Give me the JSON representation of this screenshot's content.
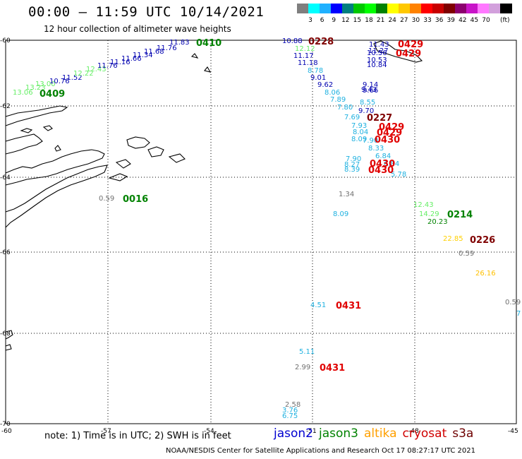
{
  "title": "00:00 – 11:59 UTC 10/14/2021",
  "subtitle": "12 hour collection of altimeter wave heights",
  "colorbar": {
    "colors": [
      "#7f7f7f",
      "#00ffff",
      "#1fb1ff",
      "#0000ff",
      "#007f7f",
      "#00c800",
      "#00ff00",
      "#008200",
      "#ffff00",
      "#ffc800",
      "#ff8200",
      "#ff0000",
      "#c80000",
      "#7f0000",
      "#8c006e",
      "#c814c8",
      "#ff78ff",
      "#d2a0dc",
      "#000000"
    ],
    "labels": [
      "3",
      "6",
      "9",
      "12",
      "15",
      "18",
      "21",
      "24",
      "27",
      "30",
      "33",
      "36",
      "39",
      "42",
      "45",
      "70"
    ],
    "unit": "(ft)"
  },
  "axes": {
    "lat_labels": [
      "-60",
      "-62",
      "-64",
      "-66",
      "-68",
      "-70"
    ],
    "lon_labels": [
      "-60",
      "-57",
      "-54",
      "-51",
      "-48",
      "-45"
    ]
  },
  "legend": [
    {
      "name": "jason2",
      "color": "#0000d0"
    },
    {
      "name": "jason3",
      "color": "#008200"
    },
    {
      "name": "altika",
      "color": "#ffa000"
    },
    {
      "name": "cryosat",
      "color": "#d00000"
    },
    {
      "name": "s3a",
      "color": "#6e0000"
    }
  ],
  "note": "note: 1) Time is in UTC; 2) SWH is in feet",
  "credit": "NOAA/NESDIS Center for Satellite Applications and Research   Oct 17 08:27:17 UTC 2021",
  "observations": [
    {
      "text": "13.06",
      "color": "#66ee66"
    },
    {
      "text": "13.23",
      "color": "#66ee66"
    },
    {
      "text": "13.00",
      "color": "#66ee66"
    },
    {
      "text": "10.76",
      "color": "#0000b0"
    },
    {
      "text": "11.52",
      "color": "#0000b0"
    },
    {
      "text": "12.22",
      "color": "#66ee66"
    },
    {
      "text": "12.43",
      "color": "#66ee66"
    },
    {
      "text": "11.76",
      "color": "#0000b0"
    },
    {
      "text": "11.16",
      "color": "#0000b0"
    },
    {
      "text": "11.66",
      "color": "#0000b0"
    },
    {
      "text": "11.34",
      "color": "#0000b0"
    },
    {
      "text": "11.68",
      "color": "#0000b0"
    },
    {
      "text": "11.76",
      "color": "#0000b0"
    },
    {
      "text": "11.83",
      "color": "#0000b0"
    },
    {
      "text": "10.88",
      "color": "#0000b0"
    },
    {
      "text": "12.12",
      "color": "#66ee66"
    },
    {
      "text": "11.17",
      "color": "#0000b0"
    },
    {
      "text": "11.18",
      "color": "#0000b0"
    },
    {
      "text": "8.78",
      "color": "#1fb1e0"
    },
    {
      "text": "9.01",
      "color": "#0000b0"
    },
    {
      "text": "9.62",
      "color": "#0000b0"
    },
    {
      "text": "8.06",
      "color": "#1fb1e0"
    },
    {
      "text": "7.89",
      "color": "#1fb1e0"
    },
    {
      "text": "7.80",
      "color": "#1fb1e0"
    },
    {
      "text": "7.69",
      "color": "#1fb1e0"
    },
    {
      "text": "7.93",
      "color": "#1fb1e0"
    },
    {
      "text": "8.04",
      "color": "#1fb1e0"
    },
    {
      "text": "8.09",
      "color": "#1fb1e0"
    },
    {
      "text": "7.90",
      "color": "#1fb1e0"
    },
    {
      "text": "8.33",
      "color": "#1fb1e0"
    },
    {
      "text": "6.84",
      "color": "#1fb1e0"
    },
    {
      "text": "7.90",
      "color": "#1fb1e0"
    },
    {
      "text": "8.27",
      "color": "#1fb1e0"
    },
    {
      "text": "8.39",
      "color": "#1fb1e0"
    },
    {
      "text": "6.84",
      "color": "#1fb1e0"
    },
    {
      "text": "5.78",
      "color": "#1fb1e0"
    },
    {
      "text": "8.55",
      "color": "#1fb1e0"
    },
    {
      "text": "9.70",
      "color": "#0000b0"
    },
    {
      "text": "9.14",
      "color": "#0000b0"
    },
    {
      "text": "9.43",
      "color": "#0000b0"
    },
    {
      "text": "9.66",
      "color": "#0000b0"
    },
    {
      "text": "11.43",
      "color": "#0000b0"
    },
    {
      "text": "11.27",
      "color": "#0000b0"
    },
    {
      "text": "10.56",
      "color": "#0000b0"
    },
    {
      "text": "10.53",
      "color": "#0000b0"
    },
    {
      "text": "10.84",
      "color": "#0000b0"
    },
    {
      "text": "1.34",
      "color": "#707070"
    },
    {
      "text": "8.09",
      "color": "#1fb1e0"
    },
    {
      "text": "0.59",
      "color": "#707070"
    },
    {
      "text": "12.43",
      "color": "#66ee66"
    },
    {
      "text": "14.29",
      "color": "#66ee66"
    },
    {
      "text": "20.23",
      "color": "#008200"
    },
    {
      "text": "22.85",
      "color": "#ffd000"
    },
    {
      "text": "0.59",
      "color": "#707070"
    },
    {
      "text": "26.16",
      "color": "#ffc000"
    },
    {
      "text": "0.59",
      "color": "#707070"
    },
    {
      "text": "7",
      "color": "#1fb1e0"
    },
    {
      "text": "4.51",
      "color": "#1fb1e0"
    },
    {
      "text": "5.11",
      "color": "#1fb1e0"
    },
    {
      "text": "2.99",
      "color": "#707070"
    },
    {
      "text": "2.58",
      "color": "#707070"
    },
    {
      "text": "3.76",
      "color": "#1fb1e0"
    },
    {
      "text": "6.75",
      "color": "#1fb1e0"
    }
  ],
  "time_labels": [
    {
      "text": "0409",
      "color": "#008200"
    },
    {
      "text": "0410",
      "color": "#008200"
    },
    {
      "text": "0228",
      "color": "#7f0000"
    },
    {
      "text": "0429",
      "color": "#e00000"
    },
    {
      "text": "0429",
      "color": "#e00000"
    },
    {
      "text": "0227",
      "color": "#7f0000"
    },
    {
      "text": "0429",
      "color": "#e00000"
    },
    {
      "text": "0429",
      "color": "#e00000"
    },
    {
      "text": "0430",
      "color": "#e00000"
    },
    {
      "text": "0430",
      "color": "#e00000"
    },
    {
      "text": "0430",
      "color": "#e00000"
    },
    {
      "text": "0016",
      "color": "#008200"
    },
    {
      "text": "0214",
      "color": "#008200"
    },
    {
      "text": "0226",
      "color": "#7f0000"
    },
    {
      "text": "0431",
      "color": "#e00000"
    },
    {
      "text": "0431",
      "color": "#e00000"
    }
  ]
}
